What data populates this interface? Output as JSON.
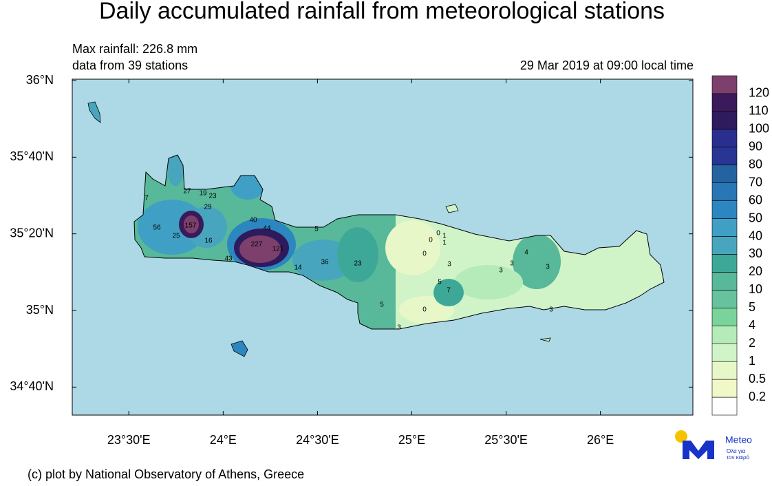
{
  "header": {
    "title": "Daily accumulated rainfall from meteorological stations",
    "max_rainfall": "Max rainfall: 226.8 mm",
    "stations": "data from 39 stations",
    "time": "29 Mar 2019 at 09:00 local time"
  },
  "map": {
    "lon_range": [
      23.2,
      26.49
    ],
    "lat_range": [
      34.545,
      36.006
    ],
    "lon_ticks": [
      {
        "value": 23.5,
        "label": "23°30'E"
      },
      {
        "value": 24,
        "label": "24°E"
      },
      {
        "value": 24.5,
        "label": "24°30'E"
      },
      {
        "value": 25,
        "label": "25°E"
      },
      {
        "value": 25.5,
        "label": "25°30'E"
      },
      {
        "value": 26,
        "label": "26°E"
      }
    ],
    "lat_ticks": [
      {
        "value": 36,
        "label": "36°N"
      },
      {
        "value": 35.6667,
        "label": "35°40'N"
      },
      {
        "value": 35.3333,
        "label": "35°20'N"
      },
      {
        "value": 35,
        "label": "35°N"
      },
      {
        "value": 34.6667,
        "label": "34°40'N"
      }
    ],
    "station_values": [
      27,
      19,
      23,
      7,
      29,
      40,
      44,
      5,
      56,
      157,
      25,
      16,
      227,
      121,
      43,
      14,
      36,
      23,
      0,
      0,
      1,
      1,
      0,
      3,
      3,
      4,
      3,
      3,
      5,
      7,
      5,
      0,
      3,
      3
    ]
  },
  "colorbar": {
    "levels": [
      0.2,
      0.5,
      1,
      2,
      4,
      5,
      10,
      20,
      30,
      40,
      50,
      60,
      70,
      80,
      90,
      100,
      110,
      120
    ],
    "colors": [
      "#ffffff",
      "#f0f8c8",
      "#e8f7c8",
      "#d0f4c8",
      "#b4ebb9",
      "#7ad39b",
      "#66c39d",
      "#58b89a",
      "#3ea898",
      "#47a6be",
      "#3f9fc4",
      "#2c86c0",
      "#2876b4",
      "#2463a0",
      "#283593",
      "#2a2f8f",
      "#2d1b5e",
      "#3a1a5a",
      "#7d3f6c"
    ]
  },
  "footer": "(c) plot by National Observatory of Athens, Greece",
  "logo": {
    "name": "Meteo",
    "tagline": [
      "Όλα για",
      "τον καιρό"
    ]
  }
}
